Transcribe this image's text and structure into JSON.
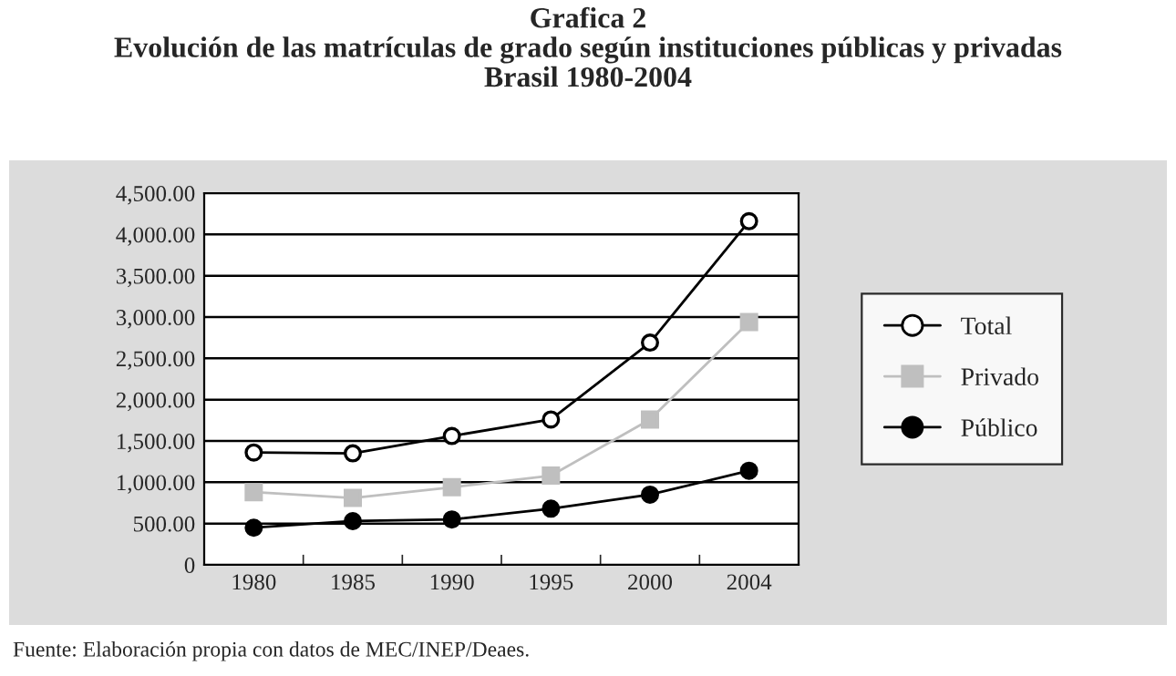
{
  "chart_data": {
    "type": "line",
    "title": "Grafica 2\nEvolución de las matrículas de grado según instituciones públicas y privadas\nBrasil 1980-2004",
    "categories": [
      "1980",
      "1985",
      "1990",
      "1995",
      "2000",
      "2004"
    ],
    "series": [
      {
        "name": "Total",
        "color": "#000000",
        "marker": "circle",
        "values": [
          1360,
          1350,
          1560,
          1760,
          2690,
          4160
        ]
      },
      {
        "name": "Privado",
        "color": "#bfbfbf",
        "marker": "square",
        "values": [
          880,
          810,
          940,
          1080,
          1760,
          2940
        ]
      },
      {
        "name": "Público",
        "color": "#000000",
        "marker": "circle",
        "values": [
          450,
          530,
          550,
          680,
          850,
          1140
        ]
      }
    ],
    "ylim": [
      0,
      4500
    ],
    "yticks": [
      {
        "value": 0,
        "label": "0"
      },
      {
        "value": 500,
        "label": "500.00"
      },
      {
        "value": 1000,
        "label": "1,000.00"
      },
      {
        "value": 1500,
        "label": "1,500.00"
      },
      {
        "value": 2000,
        "label": "2,000.00"
      },
      {
        "value": 2500,
        "label": "2,500.00"
      },
      {
        "value": 3000,
        "label": "3,000.00"
      },
      {
        "value": 3500,
        "label": "3,500.00"
      },
      {
        "value": 4000,
        "label": "4,000.00"
      },
      {
        "value": 4500,
        "label": "4,500.00"
      }
    ],
    "grid": "y",
    "legend": "right",
    "line_style": "solid",
    "annotations": [
      "Fuente: Elaboración propia con datos de MEC/INEP/Deaes."
    ]
  }
}
